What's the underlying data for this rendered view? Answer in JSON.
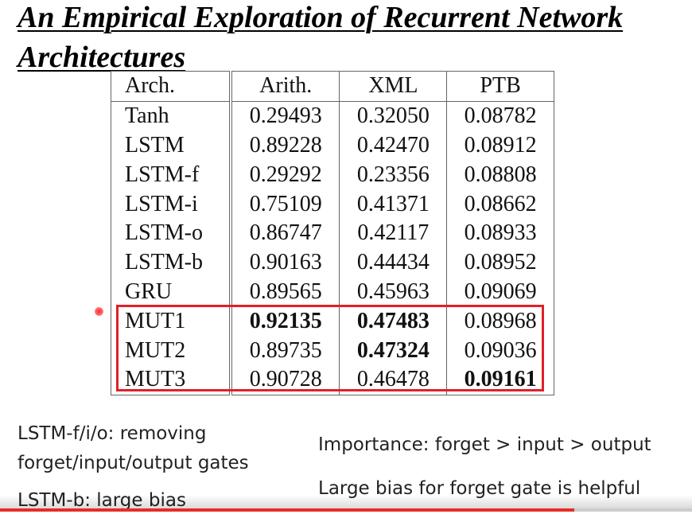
{
  "slide": {
    "title_line_1": "An Empirical Exploration of Recurrent Network",
    "title_line_2": "Architectures"
  },
  "table": {
    "headers": [
      "Arch.",
      "Arith.",
      "XML",
      "PTB"
    ],
    "rows": [
      {
        "arch": "Tanh",
        "arith": "0.29493",
        "xml": "0.32050",
        "ptb": "0.08782",
        "bold": []
      },
      {
        "arch": "LSTM",
        "arith": "0.89228",
        "xml": "0.42470",
        "ptb": "0.08912",
        "bold": []
      },
      {
        "arch": "LSTM-f",
        "arith": "0.29292",
        "xml": "0.23356",
        "ptb": "0.08808",
        "bold": []
      },
      {
        "arch": "LSTM-i",
        "arith": "0.75109",
        "xml": "0.41371",
        "ptb": "0.08662",
        "bold": []
      },
      {
        "arch": "LSTM-o",
        "arith": "0.86747",
        "xml": "0.42117",
        "ptb": "0.08933",
        "bold": []
      },
      {
        "arch": "LSTM-b",
        "arith": "0.90163",
        "xml": "0.44434",
        "ptb": "0.08952",
        "bold": []
      },
      {
        "arch": "GRU",
        "arith": "0.89565",
        "xml": "0.45963",
        "ptb": "0.09069",
        "bold": []
      },
      {
        "arch": "MUT1",
        "arith": "0.92135",
        "xml": "0.47483",
        "ptb": "0.08968",
        "bold": [
          "arith",
          "xml"
        ]
      },
      {
        "arch": "MUT2",
        "arith": "0.89735",
        "xml": "0.47324",
        "ptb": "0.09036",
        "bold": [
          "xml"
        ]
      },
      {
        "arch": "MUT3",
        "arith": "0.90728",
        "xml": "0.46478",
        "ptb": "0.09161",
        "bold": [
          "ptb"
        ]
      }
    ],
    "highlight_color": "#e0202a"
  },
  "notes": {
    "left_1": "LSTM-f/i/o: removing",
    "left_2": "forget/input/output gates",
    "left_3": "LSTM-b: large bias",
    "right_1": "Importance: forget > input > output",
    "right_2": "Large bias for forget gate is helpful"
  },
  "player": {
    "progress": 0.83,
    "accent": "#e52d27"
  }
}
